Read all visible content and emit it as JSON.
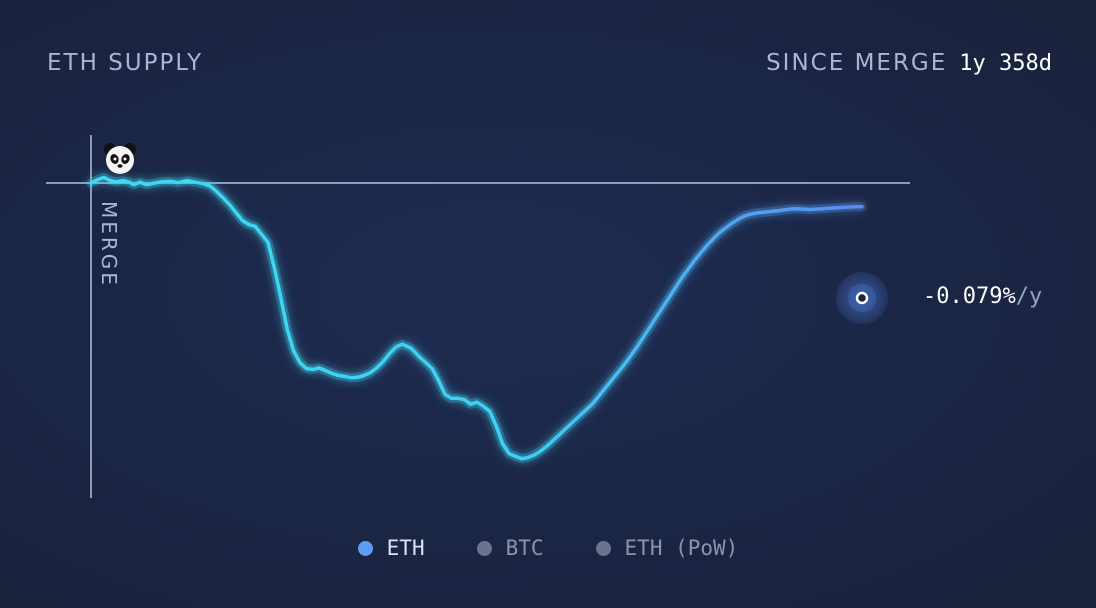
{
  "header": {
    "title": "ETH SUPPLY",
    "since_label": "SINCE MERGE",
    "duration": "1y 358d"
  },
  "rate": {
    "value": "-0.079%",
    "unit": "/y"
  },
  "merge_label": "MERGE",
  "legend": [
    {
      "label": "ETH",
      "color": "#5b9cf5",
      "text_color": "#dbe3f7",
      "active": true
    },
    {
      "label": "BTC",
      "color": "#6b7391",
      "text_color": "#8b93ae",
      "active": false
    },
    {
      "label": "ETH (PoW)",
      "color": "#6b7391",
      "text_color": "#8b93ae",
      "active": false
    }
  ],
  "colors": {
    "line_start": "#3fd8f2",
    "line_end": "#5a8cf0",
    "axis": "#b8c0dc",
    "background": "#1b2540"
  },
  "icons": {
    "marker": "panda-icon"
  },
  "chart_data": {
    "type": "line",
    "title": "ETH SUPPLY",
    "xlabel": "",
    "ylabel": "",
    "x_unit": "days since merge",
    "y_unit": "percent change in supply since merge",
    "xlim": [
      0,
      723
    ],
    "ylim": [
      -0.7,
      0.1
    ],
    "baseline": 0,
    "vertical_marker": {
      "x": 0,
      "label": "MERGE"
    },
    "end_label": "-0.079%/y",
    "grid": false,
    "legend_position": "bottom",
    "series": [
      {
        "name": "ETH",
        "x": [
          0,
          6,
          12,
          18,
          24,
          30,
          36,
          40,
          46,
          52,
          58,
          66,
          74,
          82,
          90,
          98,
          106,
          112,
          118,
          124,
          130,
          136,
          142,
          148,
          154,
          160,
          166,
          172,
          178,
          184,
          190,
          196,
          202,
          208,
          214,
          220,
          226,
          232,
          238,
          244,
          250,
          256,
          262,
          268,
          274,
          280,
          286,
          292,
          300,
          308,
          314,
          320,
          326,
          332,
          338,
          344,
          350,
          356,
          362,
          368,
          374,
          380,
          386,
          392,
          398,
          404,
          410,
          416,
          422,
          428,
          434,
          440,
          446,
          452,
          458,
          464,
          470,
          476,
          482,
          488,
          494,
          500,
          506,
          512,
          518,
          524,
          530,
          536,
          542,
          548,
          554,
          560,
          566,
          572,
          578,
          584,
          590,
          596,
          602,
          608,
          614,
          620,
          626,
          632,
          638,
          644,
          650,
          656,
          662,
          668,
          674,
          680,
          686,
          692,
          698,
          704,
          710,
          716,
          723
        ],
        "values": [
          0.0,
          0.008,
          0.014,
          0.006,
          0.003,
          0.006,
          0.002,
          -0.004,
          0.002,
          -0.004,
          -0.001,
          0.003,
          0.004,
          0.001,
          0.006,
          0.002,
          -0.002,
          -0.008,
          -0.022,
          -0.038,
          -0.055,
          -0.075,
          -0.095,
          -0.105,
          -0.11,
          -0.13,
          -0.15,
          -0.215,
          -0.29,
          -0.37,
          -0.425,
          -0.455,
          -0.47,
          -0.472,
          -0.468,
          -0.475,
          -0.482,
          -0.487,
          -0.49,
          -0.493,
          -0.492,
          -0.487,
          -0.48,
          -0.468,
          -0.452,
          -0.432,
          -0.415,
          -0.408,
          -0.418,
          -0.44,
          -0.455,
          -0.47,
          -0.5,
          -0.535,
          -0.545,
          -0.545,
          -0.548,
          -0.56,
          -0.555,
          -0.565,
          -0.578,
          -0.615,
          -0.66,
          -0.685,
          -0.692,
          -0.698,
          -0.695,
          -0.688,
          -0.678,
          -0.665,
          -0.65,
          -0.635,
          -0.62,
          -0.605,
          -0.59,
          -0.575,
          -0.56,
          -0.54,
          -0.52,
          -0.5,
          -0.48,
          -0.46,
          -0.438,
          -0.415,
          -0.39,
          -0.365,
          -0.34,
          -0.315,
          -0.29,
          -0.265,
          -0.24,
          -0.218,
          -0.196,
          -0.176,
          -0.157,
          -0.14,
          -0.124,
          -0.112,
          -0.1,
          -0.09,
          -0.082,
          -0.078,
          -0.075,
          -0.074,
          -0.072,
          -0.07,
          -0.068,
          -0.066,
          -0.065,
          -0.066,
          -0.067,
          -0.066,
          -0.065,
          -0.064,
          -0.063,
          -0.062,
          -0.061,
          -0.06,
          -0.06
        ]
      }
    ]
  }
}
